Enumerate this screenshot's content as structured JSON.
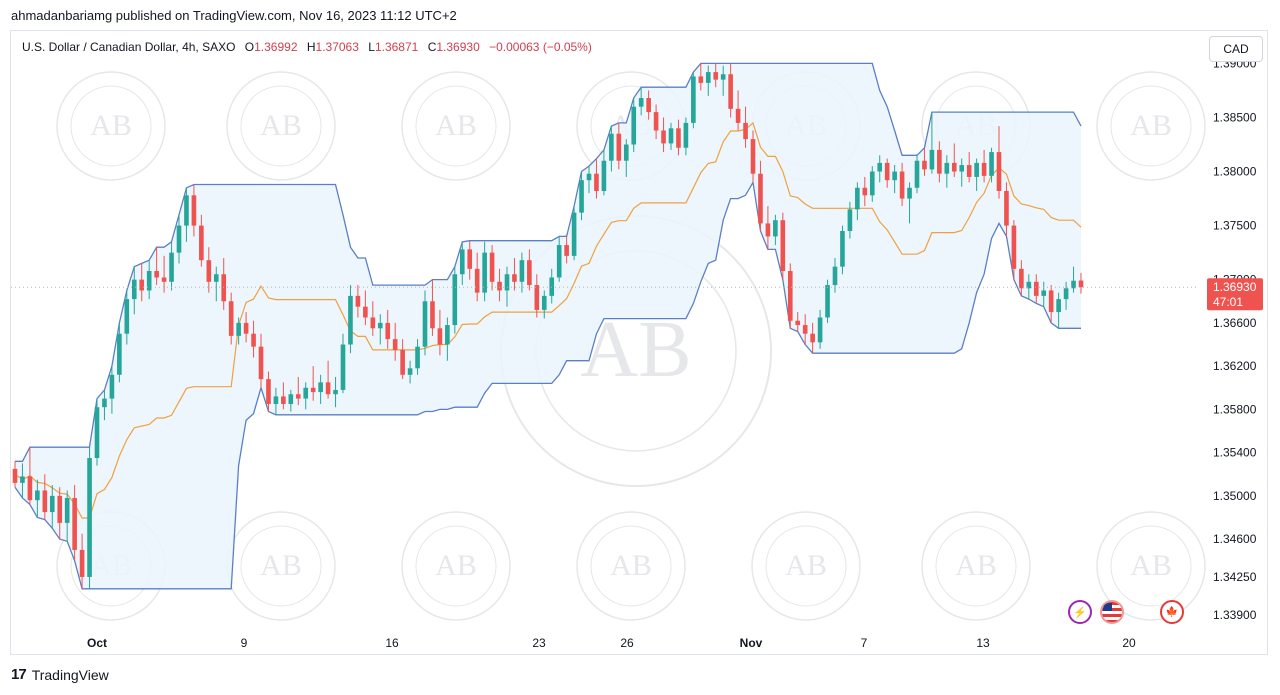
{
  "publish_line": "ahmadanbariamg published on TradingView.com, Nov 16, 2023 11:12 UTC+2",
  "legend": {
    "symbol": "U.S. Dollar / Canadian Dollar, 4h, SAXO",
    "o_label": "O",
    "o": "1.36992",
    "h_label": "H",
    "h": "1.37063",
    "l_label": "L",
    "l": "1.36871",
    "c_label": "C",
    "c": "1.36930",
    "change": "−0.00063 (−0.05%)"
  },
  "currency_button": "CAD",
  "footer": {
    "logo": "17",
    "brand": "TradingView"
  },
  "icons": [
    "lightning-icon",
    "us-flag-icon",
    "canada-flag-icon"
  ],
  "colors": {
    "up": "#26a69a",
    "down": "#ef5350",
    "upper": "#5b7fc7",
    "lower": "#5b7fc7",
    "basis": "#f0a040",
    "fill": "#eaf4fb",
    "price_tag": "#ef5350"
  },
  "chart_data": {
    "type": "candlestick",
    "indicator": "Donchian Channels",
    "ylim": [
      1.3375,
      1.393
    ],
    "y_ticks": [
      1.39,
      1.385,
      1.38,
      1.375,
      1.37,
      1.366,
      1.362,
      1.358,
      1.354,
      1.35,
      1.346,
      1.3425,
      1.339
    ],
    "y_tick_labels": [
      "1.39000",
      "1.38500",
      "1.38000",
      "1.37500",
      "1.37000",
      "1.36600",
      "1.36200",
      "1.35800",
      "1.35400",
      "1.35000",
      "1.34600",
      "1.34250",
      "1.33900"
    ],
    "x_labels": [
      "Oct",
      "9",
      "16",
      "23",
      "26",
      "Nov",
      "7",
      "13",
      "20"
    ],
    "last_price": "1.36930",
    "countdown": "47:01",
    "candles": [
      {
        "o": 1.3525,
        "h": 1.3532,
        "l": 1.3508,
        "c": 1.3512
      },
      {
        "o": 1.3512,
        "h": 1.353,
        "l": 1.3498,
        "c": 1.3518
      },
      {
        "o": 1.3518,
        "h": 1.3545,
        "l": 1.3492,
        "c": 1.3496
      },
      {
        "o": 1.3496,
        "h": 1.3515,
        "l": 1.348,
        "c": 1.3505
      },
      {
        "o": 1.3505,
        "h": 1.352,
        "l": 1.3478,
        "c": 1.3485
      },
      {
        "o": 1.3485,
        "h": 1.351,
        "l": 1.347,
        "c": 1.35
      },
      {
        "o": 1.35,
        "h": 1.3508,
        "l": 1.346,
        "c": 1.3475
      },
      {
        "o": 1.3475,
        "h": 1.3505,
        "l": 1.3458,
        "c": 1.3498
      },
      {
        "o": 1.3498,
        "h": 1.351,
        "l": 1.344,
        "c": 1.345
      },
      {
        "o": 1.345,
        "h": 1.3465,
        "l": 1.3414,
        "c": 1.3425
      },
      {
        "o": 1.3425,
        "h": 1.3545,
        "l": 1.3414,
        "c": 1.3535
      },
      {
        "o": 1.3535,
        "h": 1.359,
        "l": 1.3528,
        "c": 1.3582
      },
      {
        "o": 1.3582,
        "h": 1.3598,
        "l": 1.357,
        "c": 1.359
      },
      {
        "o": 1.359,
        "h": 1.362,
        "l": 1.3576,
        "c": 1.3612
      },
      {
        "o": 1.3612,
        "h": 1.366,
        "l": 1.3605,
        "c": 1.365
      },
      {
        "o": 1.365,
        "h": 1.369,
        "l": 1.364,
        "c": 1.3682
      },
      {
        "o": 1.3682,
        "h": 1.3712,
        "l": 1.3668,
        "c": 1.37
      },
      {
        "o": 1.37,
        "h": 1.3715,
        "l": 1.368,
        "c": 1.369
      },
      {
        "o": 1.369,
        "h": 1.3718,
        "l": 1.3682,
        "c": 1.3708
      },
      {
        "o": 1.3708,
        "h": 1.373,
        "l": 1.3695,
        "c": 1.3702
      },
      {
        "o": 1.3702,
        "h": 1.3722,
        "l": 1.3688,
        "c": 1.3698
      },
      {
        "o": 1.3698,
        "h": 1.3735,
        "l": 1.369,
        "c": 1.3725
      },
      {
        "o": 1.3725,
        "h": 1.376,
        "l": 1.3715,
        "c": 1.375
      },
      {
        "o": 1.375,
        "h": 1.3785,
        "l": 1.3735,
        "c": 1.3778
      },
      {
        "o": 1.3778,
        "h": 1.3788,
        "l": 1.374,
        "c": 1.375
      },
      {
        "o": 1.375,
        "h": 1.376,
        "l": 1.3712,
        "c": 1.3718
      },
      {
        "o": 1.3718,
        "h": 1.373,
        "l": 1.3688,
        "c": 1.3698
      },
      {
        "o": 1.3698,
        "h": 1.3712,
        "l": 1.368,
        "c": 1.3705
      },
      {
        "o": 1.3705,
        "h": 1.372,
        "l": 1.3672,
        "c": 1.368
      },
      {
        "o": 1.368,
        "h": 1.3688,
        "l": 1.364,
        "c": 1.3648
      },
      {
        "o": 1.3648,
        "h": 1.3665,
        "l": 1.364,
        "c": 1.366
      },
      {
        "o": 1.366,
        "h": 1.367,
        "l": 1.3642,
        "c": 1.365
      },
      {
        "o": 1.365,
        "h": 1.3662,
        "l": 1.3628,
        "c": 1.3638
      },
      {
        "o": 1.3638,
        "h": 1.365,
        "l": 1.36,
        "c": 1.3608
      },
      {
        "o": 1.3608,
        "h": 1.3615,
        "l": 1.3578,
        "c": 1.3585
      },
      {
        "o": 1.3585,
        "h": 1.36,
        "l": 1.3575,
        "c": 1.3592
      },
      {
        "o": 1.3592,
        "h": 1.3605,
        "l": 1.358,
        "c": 1.3585
      },
      {
        "o": 1.3585,
        "h": 1.3598,
        "l": 1.3578,
        "c": 1.3594
      },
      {
        "o": 1.3594,
        "h": 1.361,
        "l": 1.3584,
        "c": 1.359
      },
      {
        "o": 1.359,
        "h": 1.3605,
        "l": 1.358,
        "c": 1.36
      },
      {
        "o": 1.36,
        "h": 1.362,
        "l": 1.3588,
        "c": 1.3596
      },
      {
        "o": 1.3596,
        "h": 1.3612,
        "l": 1.3585,
        "c": 1.3605
      },
      {
        "o": 1.3605,
        "h": 1.3625,
        "l": 1.359,
        "c": 1.3594
      },
      {
        "o": 1.3594,
        "h": 1.361,
        "l": 1.3582,
        "c": 1.3598
      },
      {
        "o": 1.3598,
        "h": 1.365,
        "l": 1.3595,
        "c": 1.364
      },
      {
        "o": 1.364,
        "h": 1.3695,
        "l": 1.3632,
        "c": 1.3685
      },
      {
        "o": 1.3685,
        "h": 1.3695,
        "l": 1.3665,
        "c": 1.3675
      },
      {
        "o": 1.3675,
        "h": 1.369,
        "l": 1.3658,
        "c": 1.3665
      },
      {
        "o": 1.3665,
        "h": 1.368,
        "l": 1.3648,
        "c": 1.3655
      },
      {
        "o": 1.3655,
        "h": 1.3668,
        "l": 1.364,
        "c": 1.366
      },
      {
        "o": 1.366,
        "h": 1.3672,
        "l": 1.3636,
        "c": 1.3645
      },
      {
        "o": 1.3645,
        "h": 1.366,
        "l": 1.3625,
        "c": 1.3635
      },
      {
        "o": 1.3635,
        "h": 1.3645,
        "l": 1.3608,
        "c": 1.3612
      },
      {
        "o": 1.3612,
        "h": 1.3625,
        "l": 1.3604,
        "c": 1.3618
      },
      {
        "o": 1.3618,
        "h": 1.3645,
        "l": 1.3612,
        "c": 1.3638
      },
      {
        "o": 1.3638,
        "h": 1.369,
        "l": 1.363,
        "c": 1.368
      },
      {
        "o": 1.368,
        "h": 1.37,
        "l": 1.3648,
        "c": 1.3655
      },
      {
        "o": 1.3655,
        "h": 1.3672,
        "l": 1.363,
        "c": 1.364
      },
      {
        "o": 1.364,
        "h": 1.3665,
        "l": 1.3625,
        "c": 1.3658
      },
      {
        "o": 1.3658,
        "h": 1.3712,
        "l": 1.365,
        "c": 1.3705
      },
      {
        "o": 1.3705,
        "h": 1.3735,
        "l": 1.3695,
        "c": 1.3728
      },
      {
        "o": 1.3728,
        "h": 1.3736,
        "l": 1.37,
        "c": 1.371
      },
      {
        "o": 1.371,
        "h": 1.3725,
        "l": 1.368,
        "c": 1.3688
      },
      {
        "o": 1.3688,
        "h": 1.3735,
        "l": 1.368,
        "c": 1.3725
      },
      {
        "o": 1.3725,
        "h": 1.3732,
        "l": 1.369,
        "c": 1.3698
      },
      {
        "o": 1.3698,
        "h": 1.371,
        "l": 1.368,
        "c": 1.369
      },
      {
        "o": 1.369,
        "h": 1.3712,
        "l": 1.3675,
        "c": 1.3705
      },
      {
        "o": 1.3705,
        "h": 1.372,
        "l": 1.369,
        "c": 1.3698
      },
      {
        "o": 1.3698,
        "h": 1.3725,
        "l": 1.3688,
        "c": 1.3718
      },
      {
        "o": 1.3718,
        "h": 1.3728,
        "l": 1.369,
        "c": 1.3695
      },
      {
        "o": 1.3695,
        "h": 1.3705,
        "l": 1.3665,
        "c": 1.3672
      },
      {
        "o": 1.3672,
        "h": 1.369,
        "l": 1.3664,
        "c": 1.3685
      },
      {
        "o": 1.3685,
        "h": 1.371,
        "l": 1.3678,
        "c": 1.3702
      },
      {
        "o": 1.3702,
        "h": 1.374,
        "l": 1.3698,
        "c": 1.3732
      },
      {
        "o": 1.3732,
        "h": 1.374,
        "l": 1.3715,
        "c": 1.3722
      },
      {
        "o": 1.3722,
        "h": 1.3768,
        "l": 1.3718,
        "c": 1.3762
      },
      {
        "o": 1.3762,
        "h": 1.38,
        "l": 1.3755,
        "c": 1.3792
      },
      {
        "o": 1.3792,
        "h": 1.3805,
        "l": 1.378,
        "c": 1.3798
      },
      {
        "o": 1.3798,
        "h": 1.3812,
        "l": 1.3775,
        "c": 1.3782
      },
      {
        "o": 1.3782,
        "h": 1.382,
        "l": 1.3778,
        "c": 1.381
      },
      {
        "o": 1.381,
        "h": 1.3842,
        "l": 1.38,
        "c": 1.3835
      },
      {
        "o": 1.3835,
        "h": 1.3845,
        "l": 1.3802,
        "c": 1.381
      },
      {
        "o": 1.381,
        "h": 1.383,
        "l": 1.3795,
        "c": 1.3825
      },
      {
        "o": 1.3825,
        "h": 1.3868,
        "l": 1.3818,
        "c": 1.386
      },
      {
        "o": 1.386,
        "h": 1.3878,
        "l": 1.3852,
        "c": 1.3868
      },
      {
        "o": 1.3868,
        "h": 1.3875,
        "l": 1.3848,
        "c": 1.3855
      },
      {
        "o": 1.3855,
        "h": 1.3862,
        "l": 1.383,
        "c": 1.3838
      },
      {
        "o": 1.3838,
        "h": 1.385,
        "l": 1.3818,
        "c": 1.3826
      },
      {
        "o": 1.3826,
        "h": 1.3845,
        "l": 1.382,
        "c": 1.384
      },
      {
        "o": 1.384,
        "h": 1.3848,
        "l": 1.3815,
        "c": 1.3822
      },
      {
        "o": 1.3822,
        "h": 1.385,
        "l": 1.3815,
        "c": 1.3845
      },
      {
        "o": 1.3845,
        "h": 1.3892,
        "l": 1.384,
        "c": 1.3888
      },
      {
        "o": 1.3888,
        "h": 1.39,
        "l": 1.3875,
        "c": 1.3882
      },
      {
        "o": 1.3882,
        "h": 1.3898,
        "l": 1.387,
        "c": 1.3892
      },
      {
        "o": 1.3892,
        "h": 1.39,
        "l": 1.3878,
        "c": 1.3885
      },
      {
        "o": 1.3885,
        "h": 1.3898,
        "l": 1.387,
        "c": 1.389
      },
      {
        "o": 1.389,
        "h": 1.39,
        "l": 1.385,
        "c": 1.3858
      },
      {
        "o": 1.3858,
        "h": 1.3875,
        "l": 1.3838,
        "c": 1.3845
      },
      {
        "o": 1.3845,
        "h": 1.386,
        "l": 1.3822,
        "c": 1.383
      },
      {
        "o": 1.383,
        "h": 1.3838,
        "l": 1.379,
        "c": 1.3798
      },
      {
        "o": 1.3798,
        "h": 1.381,
        "l": 1.3745,
        "c": 1.3752
      },
      {
        "o": 1.3752,
        "h": 1.3768,
        "l": 1.3728,
        "c": 1.374
      },
      {
        "o": 1.374,
        "h": 1.376,
        "l": 1.3732,
        "c": 1.3755
      },
      {
        "o": 1.3755,
        "h": 1.3762,
        "l": 1.37,
        "c": 1.3708
      },
      {
        "o": 1.3708,
        "h": 1.3715,
        "l": 1.3655,
        "c": 1.3662
      },
      {
        "o": 1.3662,
        "h": 1.367,
        "l": 1.3652,
        "c": 1.3658
      },
      {
        "o": 1.3658,
        "h": 1.3668,
        "l": 1.364,
        "c": 1.365
      },
      {
        "o": 1.365,
        "h": 1.366,
        "l": 1.3632,
        "c": 1.3642
      },
      {
        "o": 1.3642,
        "h": 1.3672,
        "l": 1.3636,
        "c": 1.3665
      },
      {
        "o": 1.3665,
        "h": 1.37,
        "l": 1.366,
        "c": 1.3695
      },
      {
        "o": 1.3695,
        "h": 1.372,
        "l": 1.3688,
        "c": 1.3712
      },
      {
        "o": 1.3712,
        "h": 1.375,
        "l": 1.3705,
        "c": 1.3745
      },
      {
        "o": 1.3745,
        "h": 1.3772,
        "l": 1.3738,
        "c": 1.3765
      },
      {
        "o": 1.3765,
        "h": 1.379,
        "l": 1.3755,
        "c": 1.3785
      },
      {
        "o": 1.3785,
        "h": 1.3795,
        "l": 1.3768,
        "c": 1.3778
      },
      {
        "o": 1.3778,
        "h": 1.3805,
        "l": 1.3772,
        "c": 1.38
      },
      {
        "o": 1.38,
        "h": 1.3815,
        "l": 1.379,
        "c": 1.3808
      },
      {
        "o": 1.3808,
        "h": 1.3812,
        "l": 1.3785,
        "c": 1.3792
      },
      {
        "o": 1.3792,
        "h": 1.3806,
        "l": 1.378,
        "c": 1.38
      },
      {
        "o": 1.38,
        "h": 1.3808,
        "l": 1.3768,
        "c": 1.3775
      },
      {
        "o": 1.3775,
        "h": 1.379,
        "l": 1.3752,
        "c": 1.3785
      },
      {
        "o": 1.3785,
        "h": 1.3815,
        "l": 1.378,
        "c": 1.381
      },
      {
        "o": 1.381,
        "h": 1.3822,
        "l": 1.3796,
        "c": 1.3802
      },
      {
        "o": 1.3802,
        "h": 1.3855,
        "l": 1.3798,
        "c": 1.382
      },
      {
        "o": 1.382,
        "h": 1.3828,
        "l": 1.379,
        "c": 1.3798
      },
      {
        "o": 1.3798,
        "h": 1.3815,
        "l": 1.3785,
        "c": 1.3808
      },
      {
        "o": 1.3808,
        "h": 1.3826,
        "l": 1.3795,
        "c": 1.38
      },
      {
        "o": 1.38,
        "h": 1.3812,
        "l": 1.3786,
        "c": 1.3806
      },
      {
        "o": 1.3806,
        "h": 1.3818,
        "l": 1.379,
        "c": 1.3795
      },
      {
        "o": 1.3795,
        "h": 1.3812,
        "l": 1.3782,
        "c": 1.3808
      },
      {
        "o": 1.3808,
        "h": 1.382,
        "l": 1.379,
        "c": 1.3796
      },
      {
        "o": 1.3796,
        "h": 1.3822,
        "l": 1.379,
        "c": 1.3818
      },
      {
        "o": 1.3818,
        "h": 1.3842,
        "l": 1.3775,
        "c": 1.3782
      },
      {
        "o": 1.3782,
        "h": 1.379,
        "l": 1.374,
        "c": 1.375
      },
      {
        "o": 1.375,
        "h": 1.3755,
        "l": 1.37,
        "c": 1.371
      },
      {
        "o": 1.371,
        "h": 1.3718,
        "l": 1.3685,
        "c": 1.3692
      },
      {
        "o": 1.3692,
        "h": 1.3705,
        "l": 1.3682,
        "c": 1.3698
      },
      {
        "o": 1.3698,
        "h": 1.3705,
        "l": 1.3678,
        "c": 1.3685
      },
      {
        "o": 1.3685,
        "h": 1.3698,
        "l": 1.3675,
        "c": 1.369
      },
      {
        "o": 1.369,
        "h": 1.3695,
        "l": 1.366,
        "c": 1.367
      },
      {
        "o": 1.367,
        "h": 1.3688,
        "l": 1.3655,
        "c": 1.3682
      },
      {
        "o": 1.3682,
        "h": 1.3698,
        "l": 1.3672,
        "c": 1.3692
      },
      {
        "o": 1.3692,
        "h": 1.3712,
        "l": 1.3688,
        "c": 1.3699
      },
      {
        "o": 1.36992,
        "h": 1.37063,
        "l": 1.36871,
        "c": 1.3693
      }
    ]
  }
}
